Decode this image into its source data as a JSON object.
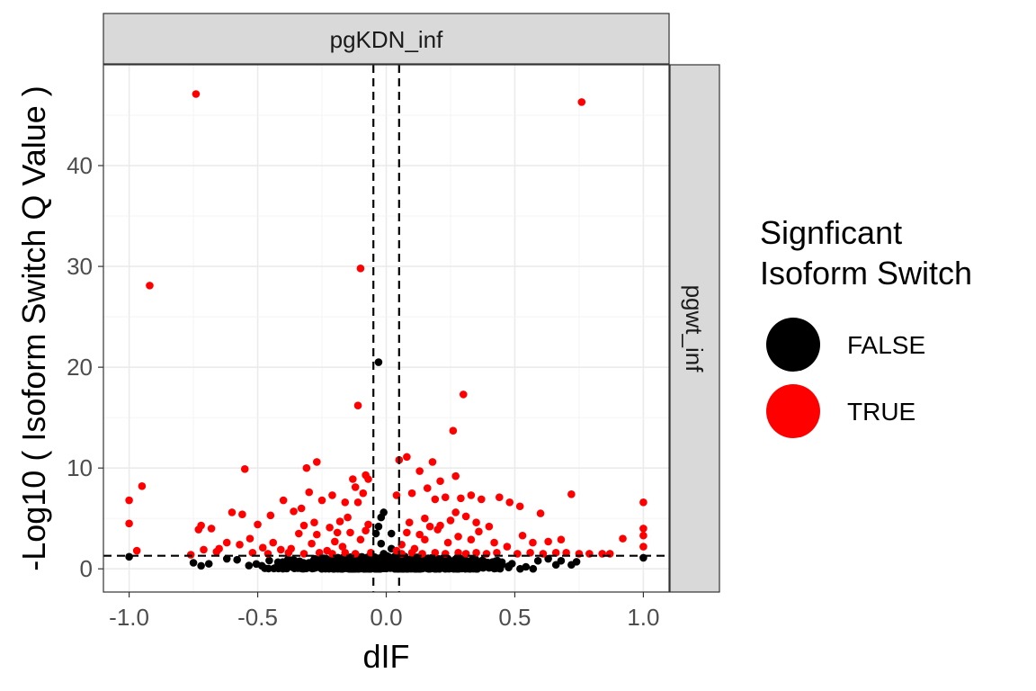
{
  "chart_data": {
    "type": "scatter",
    "facet_column_label": "pgKDN_inf",
    "facet_row_label": "pgwt_inf",
    "xlabel": "dIF",
    "ylabel": "-Log10 ( Isoform Switch Q Value )",
    "xlim": [
      -1.1,
      1.1
    ],
    "ylim": [
      -2.3,
      50
    ],
    "x_ticks": [
      -1.0,
      -0.5,
      0.0,
      0.5,
      1.0
    ],
    "x_tick_labels": [
      "-1.0",
      "-0.5",
      "0.0",
      "0.5",
      "1.0"
    ],
    "y_ticks": [
      0,
      10,
      20,
      30,
      40
    ],
    "y_tick_labels": [
      "0",
      "10",
      "20",
      "30",
      "40"
    ],
    "grid": true,
    "reference_lines": {
      "vertical_dIF": [
        -0.05,
        0.05
      ],
      "horizontal_qvalue": 1.3
    },
    "legend": {
      "title_lines": [
        "Signficant",
        "Isoform Switch"
      ],
      "position": "right",
      "entries": [
        {
          "label": "FALSE",
          "color": "#000000"
        },
        {
          "label": "TRUE",
          "color": "#ff0000"
        }
      ]
    },
    "series": [
      {
        "name": "TRUE",
        "color": "#ff0000",
        "points": [
          [
            -0.74,
            47.1
          ],
          [
            0.76,
            46.3
          ],
          [
            -0.92,
            28.1
          ],
          [
            -0.1,
            29.8
          ],
          [
            -0.11,
            16.2
          ],
          [
            0.3,
            17.3
          ],
          [
            0.26,
            13.7
          ],
          [
            -0.27,
            10.6
          ],
          [
            -0.31,
            10.0
          ],
          [
            -0.55,
            9.9
          ],
          [
            0.08,
            11.1
          ],
          [
            0.05,
            10.8
          ],
          [
            0.18,
            10.6
          ],
          [
            0.13,
            9.7
          ],
          [
            0.27,
            9.2
          ],
          [
            0.21,
            8.7
          ],
          [
            -0.08,
            9.3
          ],
          [
            -0.07,
            8.9
          ],
          [
            -0.13,
            8.9
          ],
          [
            -0.95,
            8.2
          ],
          [
            -1.0,
            6.8
          ],
          [
            -1.0,
            4.5
          ],
          [
            -0.97,
            1.8
          ],
          [
            -0.72,
            4.3
          ],
          [
            -0.73,
            3.9
          ],
          [
            -0.68,
            4.0
          ],
          [
            -0.6,
            5.6
          ],
          [
            -0.56,
            5.4
          ],
          [
            -0.5,
            4.4
          ],
          [
            -0.45,
            5.3
          ],
          [
            -0.4,
            6.8
          ],
          [
            -0.36,
            5.7
          ],
          [
            -0.33,
            6.0
          ],
          [
            -0.3,
            7.6
          ],
          [
            -0.25,
            6.8
          ],
          [
            -0.21,
            7.3
          ],
          [
            -0.16,
            6.6
          ],
          [
            -0.12,
            8.1
          ],
          [
            -0.09,
            7.5
          ],
          [
            -0.11,
            6.6
          ],
          [
            0.04,
            7.3
          ],
          [
            0.1,
            7.5
          ],
          [
            0.16,
            8.0
          ],
          [
            0.19,
            6.9
          ],
          [
            0.23,
            7.1
          ],
          [
            0.29,
            7.0
          ],
          [
            0.33,
            7.3
          ],
          [
            0.37,
            6.9
          ],
          [
            0.44,
            7.1
          ],
          [
            0.48,
            6.6
          ],
          [
            0.52,
            6.2
          ],
          [
            0.6,
            5.5
          ],
          [
            0.72,
            7.4
          ],
          [
            1.0,
            6.6
          ],
          [
            1.0,
            4.0
          ],
          [
            1.0,
            3.3
          ],
          [
            1.0,
            2.2
          ],
          [
            0.92,
            3.0
          ],
          [
            0.87,
            1.5
          ],
          [
            0.84,
            1.5
          ],
          [
            0.79,
            1.5
          ],
          [
            0.75,
            1.5
          ],
          [
            0.7,
            1.6
          ],
          [
            0.68,
            2.9
          ],
          [
            0.63,
            2.7
          ],
          [
            0.57,
            2.6
          ],
          [
            0.53,
            3.3
          ],
          [
            0.47,
            2.2
          ],
          [
            0.42,
            2.6
          ],
          [
            0.36,
            3.7
          ],
          [
            0.33,
            2.9
          ],
          [
            0.28,
            3.2
          ],
          [
            0.24,
            2.6
          ],
          [
            0.2,
            3.9
          ],
          [
            0.15,
            2.9
          ],
          [
            0.11,
            2.0
          ],
          [
            0.08,
            3.6
          ],
          [
            0.06,
            2.4
          ],
          [
            0.04,
            1.8
          ],
          [
            -0.07,
            4.4
          ],
          [
            -0.08,
            3.8
          ],
          [
            -0.1,
            2.9
          ],
          [
            -0.14,
            3.6
          ],
          [
            -0.17,
            2.2
          ],
          [
            -0.2,
            2.7
          ],
          [
            -0.23,
            1.8
          ],
          [
            -0.27,
            3.4
          ],
          [
            -0.29,
            2.5
          ],
          [
            -0.34,
            3.5
          ],
          [
            -0.37,
            2.0
          ],
          [
            -0.41,
            1.9
          ],
          [
            -0.44,
            2.6
          ],
          [
            -0.48,
            2.1
          ],
          [
            -0.53,
            3.0
          ],
          [
            -0.57,
            2.4
          ],
          [
            -0.62,
            2.6
          ],
          [
            -0.65,
            2.0
          ],
          [
            -0.71,
            1.9
          ],
          [
            -0.76,
            1.4
          ],
          [
            -0.66,
            1.7
          ],
          [
            -0.52,
            1.6
          ],
          [
            -0.46,
            1.5
          ],
          [
            -0.38,
            1.6
          ],
          [
            -0.32,
            1.5
          ],
          [
            -0.26,
            1.6
          ],
          [
            -0.21,
            1.5
          ],
          [
            -0.16,
            1.6
          ],
          [
            -0.12,
            1.5
          ],
          [
            -0.06,
            1.6
          ],
          [
            0.06,
            1.5
          ],
          [
            0.1,
            1.6
          ],
          [
            0.14,
            1.5
          ],
          [
            0.19,
            1.6
          ],
          [
            0.23,
            1.5
          ],
          [
            0.28,
            1.6
          ],
          [
            0.31,
            1.5
          ],
          [
            0.35,
            1.6
          ],
          [
            0.39,
            1.5
          ],
          [
            0.43,
            1.6
          ],
          [
            0.51,
            1.5
          ],
          [
            0.56,
            1.6
          ],
          [
            0.61,
            1.5
          ],
          [
            0.66,
            1.6
          ],
          [
            0.09,
            4.6
          ],
          [
            0.15,
            5.0
          ],
          [
            0.17,
            4.2
          ],
          [
            0.25,
            4.8
          ],
          [
            0.27,
            5.6
          ],
          [
            0.31,
            5.2
          ],
          [
            0.35,
            4.6
          ],
          [
            0.4,
            4.2
          ],
          [
            -0.18,
            4.7
          ],
          [
            -0.22,
            4.1
          ],
          [
            -0.28,
            4.6
          ],
          [
            -0.32,
            4.3
          ],
          [
            -0.19,
            3.6
          ],
          [
            -0.15,
            5.1
          ],
          [
            0.13,
            3.4
          ],
          [
            0.21,
            4.3
          ]
        ]
      },
      {
        "name": "FALSE",
        "color": "#000000",
        "points": [
          [
            -0.03,
            20.5
          ],
          [
            -0.01,
            5.6
          ],
          [
            -0.02,
            5.1
          ],
          [
            -0.03,
            4.2
          ],
          [
            -0.04,
            3.5
          ],
          [
            0.02,
            3.5
          ],
          [
            -0.02,
            2.5
          ],
          [
            0.02,
            2.0
          ],
          [
            -0.01,
            1.5
          ],
          [
            -1.0,
            1.2
          ],
          [
            1.0,
            1.1
          ],
          [
            -0.75,
            0.6
          ],
          [
            -0.72,
            0.3
          ],
          [
            0.72,
            0.4
          ],
          [
            0.74,
            0.7
          ],
          [
            0.68,
            0.8
          ],
          [
            -0.62,
            1.0
          ],
          [
            -0.58,
            0.9
          ],
          [
            0.63,
            1.0
          ],
          [
            0.59,
            0.8
          ],
          [
            -0.69,
            0.5
          ],
          [
            0.66,
            0.4
          ]
        ],
        "dense_band": {
          "x_range": [
            -0.6,
            0.62
          ],
          "y_range": [
            0,
            1.3
          ],
          "count": 900
        }
      }
    ]
  }
}
